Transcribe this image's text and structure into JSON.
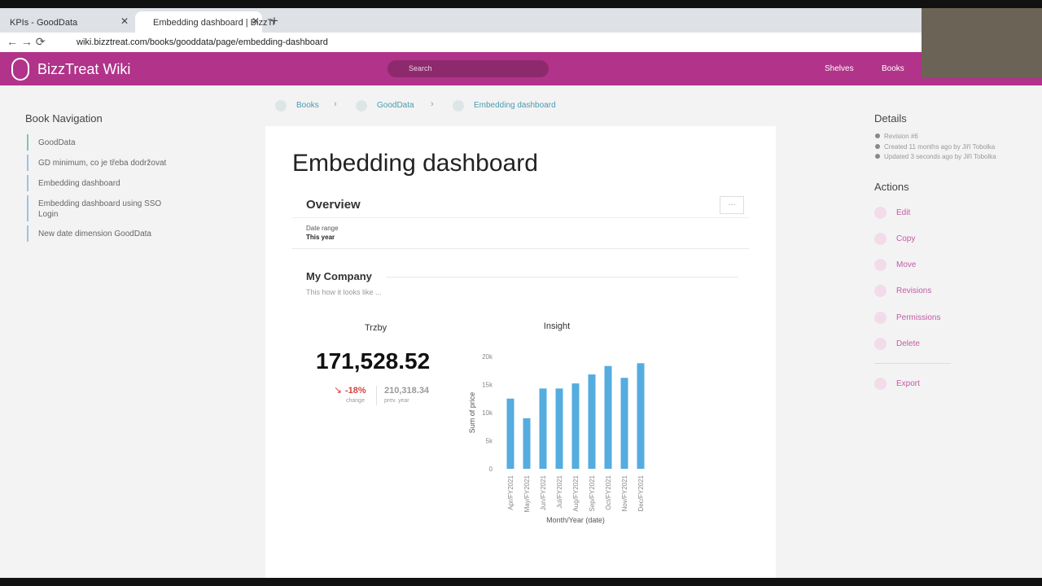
{
  "browser": {
    "tabs": [
      "KPIs - GoodData",
      "Embedding dashboard | BizzTr"
    ],
    "url": "wiki.bizztreat.com/books/gooddata/page/embedding-dashboard"
  },
  "header": {
    "title": "BizzTreat Wiki",
    "search": "Search",
    "links": [
      "Shelves",
      "Books"
    ]
  },
  "navigation": {
    "title": "Book Navigation",
    "items": [
      "GoodData",
      "GD minimum, co je třeba dodržovat",
      "Embedding dashboard",
      "Embedding dashboard using SSO Login",
      "New date dimension GoodData"
    ]
  },
  "breadcrumbs": [
    "Books",
    "GoodData",
    "Embedding dashboard"
  ],
  "page": {
    "title": "Embedding dashboard"
  },
  "dashboard": {
    "title": "Overview",
    "filter_label": "Date range",
    "filter_value": "This year",
    "section_title": "My Company",
    "section_description": "This how it looks like ...",
    "kpi": {
      "title": "Trzby",
      "value": "171,528.52",
      "change": "-18%",
      "change_label": "change",
      "previous": "210,318.34",
      "previous_label": "prev. year"
    }
  },
  "details": {
    "title": "Details",
    "items": [
      "Revision #6",
      "Created 11 months ago by Jiří Tobolka",
      "Updated 3 seconds ago by Jiří Tobolka"
    ]
  },
  "actions": {
    "title": "Actions",
    "items": [
      "Edit",
      "Copy",
      "Move",
      "Revisions",
      "Permissions",
      "Delete",
      "Export"
    ]
  },
  "chart_data": {
    "type": "bar",
    "title": "Insight",
    "x_label": "Month/Year (date)",
    "y_label": "Sum of price",
    "categories": [
      "Apr/FY2021",
      "May/FY2021",
      "Jun/FY2021",
      "Jul/FY2021",
      "Aug/FY2021",
      "Sep/FY2021",
      "Oct/FY2021",
      "Nov/FY2021",
      "Dec/FY2021"
    ],
    "values": [
      12500,
      9000,
      14300,
      14300,
      15200,
      16800,
      18300,
      16200,
      18800
    ],
    "color": "#55acdf",
    "ylim": [
      0,
      20000
    ],
    "yticks": [
      0,
      {
        "value": 5000,
        "label": "5k"
      },
      {
        "value": 10000,
        "label": "10k"
      },
      {
        "value": 15000,
        "label": "15k"
      },
      {
        "value": 20000,
        "label": "20k"
      }
    ]
  }
}
